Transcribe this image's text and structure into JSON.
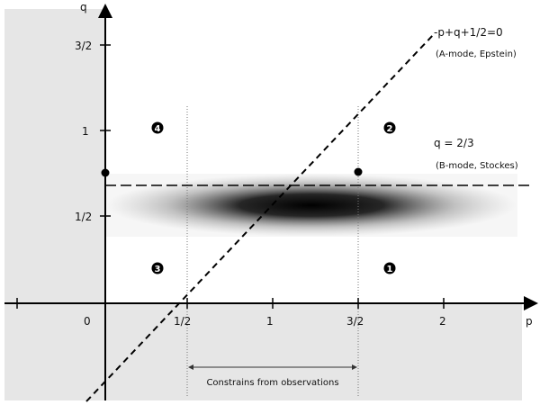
{
  "axes": {
    "x_label": "p",
    "y_label": "q",
    "x_ticks": [
      "0",
      "1/2",
      "1",
      "3/2",
      "2"
    ],
    "y_ticks": [
      "3/2",
      "1",
      "1/2"
    ]
  },
  "lines": {
    "a_mode_equation": "-p+q+1/2=0",
    "a_mode_note": "(A-mode, Epstein)",
    "b_mode_equation": "q = 2/3",
    "b_mode_note": "(B-mode, Stockes)"
  },
  "regions": {
    "r1": "1",
    "r2": "2",
    "r3": "3",
    "r4": "4"
  },
  "constraint_label": "Constrains from observations",
  "colors": {
    "shaded_region": "#e6e6e6",
    "axis": "#000000",
    "band_dark": "#000000"
  }
}
